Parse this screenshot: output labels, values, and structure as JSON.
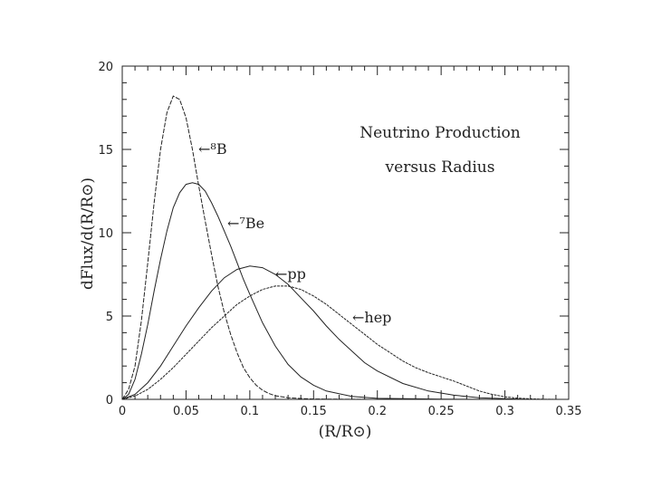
{
  "chart_data": {
    "type": "line",
    "title": "Neutrino Production",
    "subtitle": "versus Radius",
    "xlabel": "(R/R⊙)",
    "ylabel": "dFlux/d(R/R⊙)",
    "xlim": [
      0,
      0.35
    ],
    "ylim": [
      0,
      20
    ],
    "grid": false,
    "x_ticks": [
      "0",
      "0.05",
      "0.1",
      "0.15",
      "0.2",
      "0.25",
      "0.3",
      "0.35"
    ],
    "y_ticks": [
      "0",
      "5",
      "10",
      "15",
      "20"
    ],
    "series": [
      {
        "name": "8B",
        "label_text": "←⁸B",
        "x": [
          0,
          0.005,
          0.01,
          0.015,
          0.02,
          0.025,
          0.03,
          0.035,
          0.04,
          0.045,
          0.05,
          0.055,
          0.06,
          0.065,
          0.07,
          0.075,
          0.08,
          0.085,
          0.09,
          0.095,
          0.1,
          0.105,
          0.11,
          0.115,
          0.12,
          0.13,
          0.14,
          0.15,
          0.17,
          0.2,
          0.25
        ],
        "values": [
          0,
          0.6,
          2.0,
          4.7,
          8.2,
          11.8,
          15.0,
          17.2,
          18.2,
          18.0,
          16.9,
          15.0,
          12.8,
          10.7,
          8.7,
          6.8,
          5.2,
          3.9,
          2.8,
          1.9,
          1.3,
          0.85,
          0.55,
          0.35,
          0.22,
          0.1,
          0.05,
          0.02,
          0.01,
          0,
          0
        ]
      },
      {
        "name": "7Be",
        "label_text": "←⁷Be",
        "x": [
          0,
          0.005,
          0.01,
          0.015,
          0.02,
          0.025,
          0.03,
          0.035,
          0.04,
          0.045,
          0.05,
          0.055,
          0.06,
          0.065,
          0.07,
          0.075,
          0.08,
          0.085,
          0.09,
          0.095,
          0.1,
          0.11,
          0.12,
          0.13,
          0.14,
          0.15,
          0.16,
          0.18,
          0.2,
          0.25,
          0.3
        ],
        "values": [
          0,
          0.3,
          1.2,
          2.7,
          4.5,
          6.5,
          8.4,
          10.1,
          11.5,
          12.4,
          12.9,
          13.0,
          12.9,
          12.5,
          11.8,
          11.0,
          10.1,
          9.2,
          8.2,
          7.2,
          6.3,
          4.6,
          3.2,
          2.1,
          1.35,
          0.85,
          0.5,
          0.18,
          0.06,
          0.01,
          0
        ]
      },
      {
        "name": "pp",
        "label_text": "←pp",
        "x": [
          0,
          0.01,
          0.02,
          0.03,
          0.04,
          0.05,
          0.06,
          0.07,
          0.08,
          0.09,
          0.1,
          0.11,
          0.12,
          0.13,
          0.14,
          0.15,
          0.16,
          0.17,
          0.18,
          0.19,
          0.2,
          0.22,
          0.24,
          0.26,
          0.28,
          0.3,
          0.32
        ],
        "values": [
          0,
          0.3,
          1.0,
          2.0,
          3.2,
          4.4,
          5.5,
          6.5,
          7.3,
          7.8,
          8.0,
          7.9,
          7.5,
          6.9,
          6.1,
          5.3,
          4.4,
          3.6,
          2.9,
          2.2,
          1.7,
          0.95,
          0.5,
          0.25,
          0.1,
          0.04,
          0
        ]
      },
      {
        "name": "hep",
        "label_text": "←hep",
        "x": [
          0,
          0.01,
          0.02,
          0.03,
          0.04,
          0.05,
          0.06,
          0.07,
          0.08,
          0.09,
          0.1,
          0.11,
          0.12,
          0.13,
          0.14,
          0.15,
          0.16,
          0.17,
          0.18,
          0.19,
          0.2,
          0.21,
          0.22,
          0.23,
          0.24,
          0.25,
          0.26,
          0.27,
          0.28,
          0.29,
          0.3,
          0.31,
          0.32,
          0.33,
          0.34
        ],
        "values": [
          0,
          0.2,
          0.6,
          1.2,
          1.9,
          2.7,
          3.5,
          4.3,
          5.0,
          5.7,
          6.2,
          6.6,
          6.8,
          6.8,
          6.6,
          6.2,
          5.7,
          5.1,
          4.5,
          3.9,
          3.3,
          2.8,
          2.3,
          1.9,
          1.6,
          1.35,
          1.1,
          0.8,
          0.5,
          0.3,
          0.15,
          0.07,
          0.03,
          0.01,
          0
        ]
      }
    ]
  }
}
